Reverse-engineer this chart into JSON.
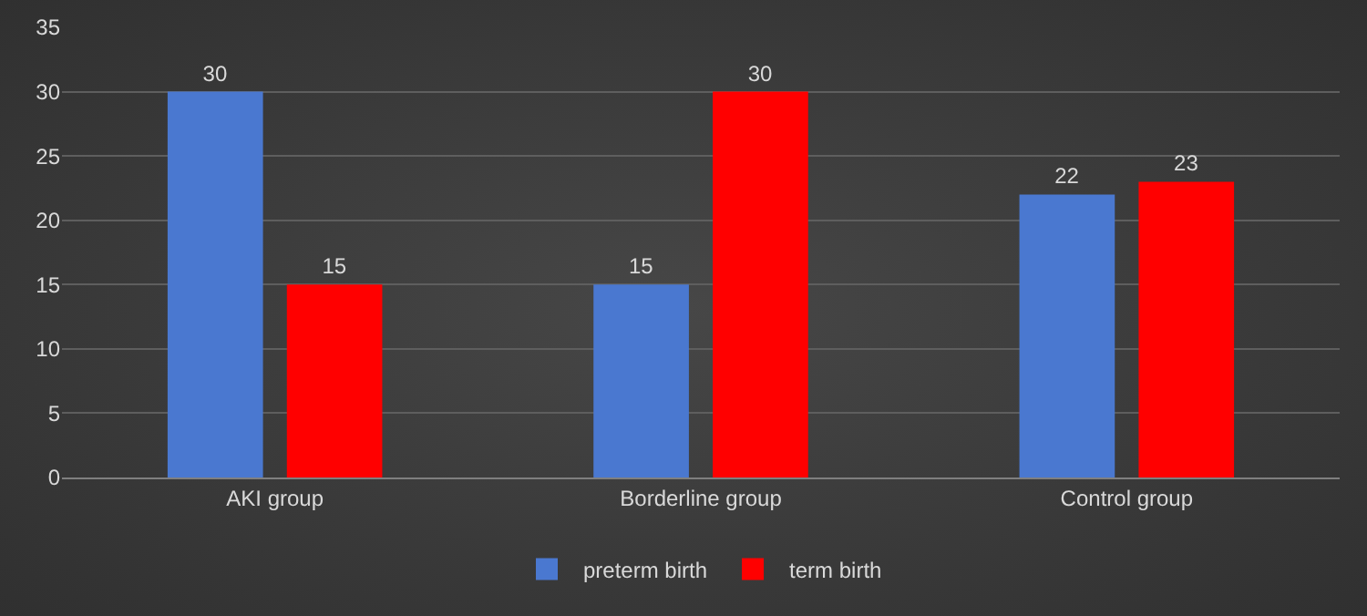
{
  "chart_data": {
    "type": "bar",
    "categories": [
      "AKI group",
      "Borderline group",
      "Control group"
    ],
    "series": [
      {
        "name": "preterm birth",
        "color": "#4a78d0",
        "values": [
          30,
          15,
          22
        ]
      },
      {
        "name": "term birth",
        "color": "#ff0000",
        "values": [
          15,
          30,
          23
        ]
      }
    ],
    "ylim": [
      0,
      35
    ],
    "yticks": [
      0,
      5,
      10,
      15,
      20,
      25,
      30,
      35
    ],
    "grid": "y",
    "legend": "bottom",
    "data_labels": true
  }
}
